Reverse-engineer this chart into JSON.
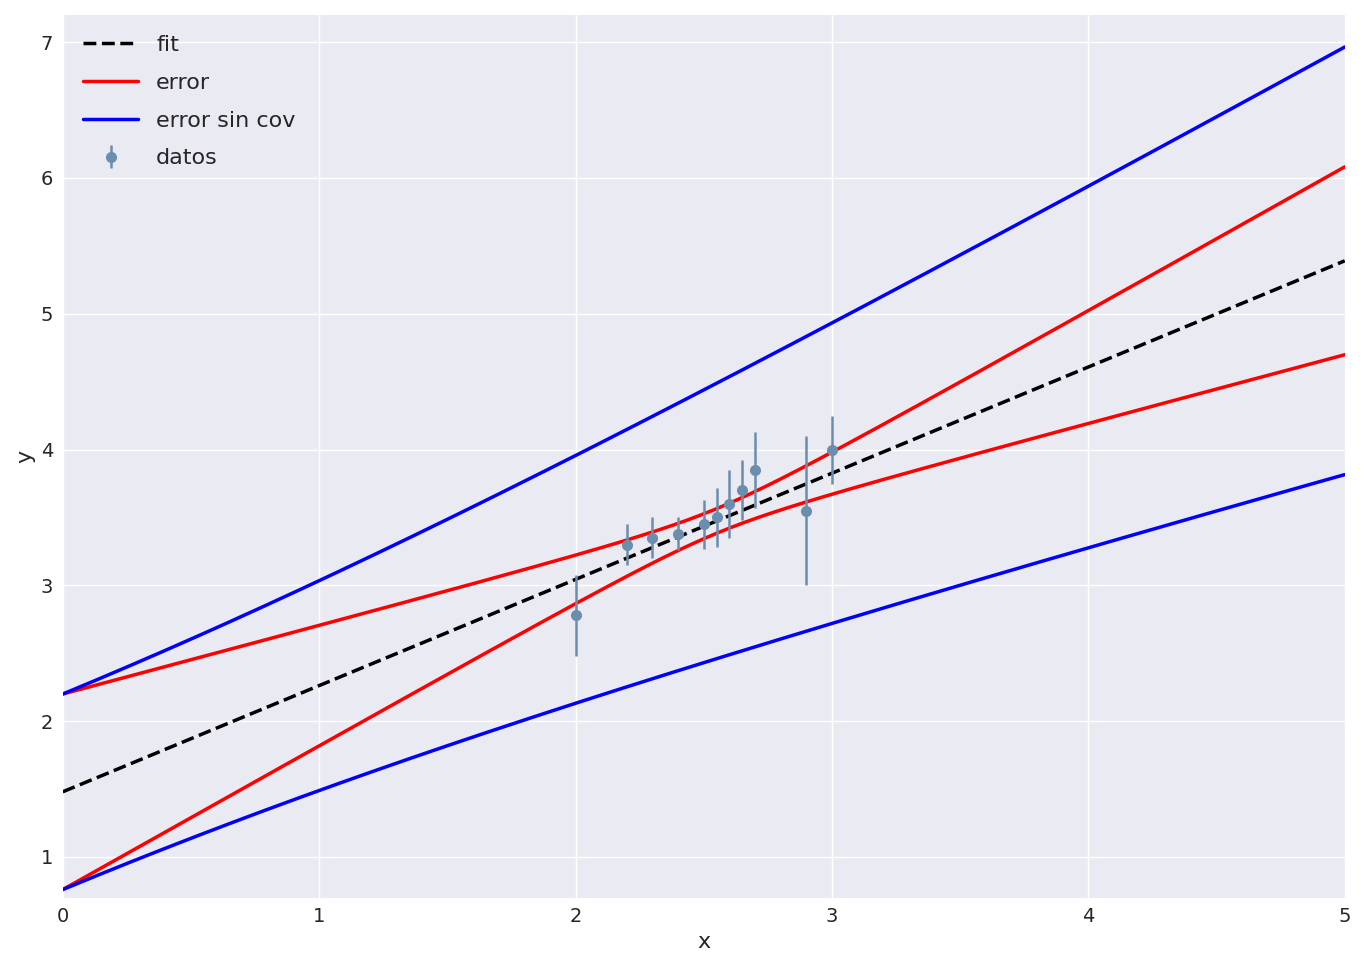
{
  "fit_a": 1.48,
  "fit_b": 0.782,
  "sigma_a": 0.72,
  "sigma_b": 0.28,
  "cov_ab": -0.2,
  "x_data": [
    2.0,
    2.2,
    2.3,
    2.4,
    2.5,
    2.55,
    2.6,
    2.65,
    2.7,
    2.9,
    3.0
  ],
  "y_data": [
    2.78,
    3.3,
    3.35,
    3.38,
    3.45,
    3.5,
    3.6,
    3.7,
    3.85,
    3.55,
    4.0
  ],
  "y_err": [
    0.3,
    0.15,
    0.15,
    0.12,
    0.18,
    0.22,
    0.25,
    0.22,
    0.28,
    0.55,
    0.25
  ],
  "xlim": [
    0,
    5
  ],
  "ylim": [
    0.7,
    7.2
  ],
  "xlabel": "x",
  "ylabel": "y",
  "legend_labels": [
    "fit",
    "error",
    "error sin cov",
    "datos"
  ],
  "fit_color": "black",
  "error_color": "red",
  "error_sin_cov_color": "blue",
  "data_color": "#6b8eae",
  "figsize": [
    13.66,
    9.67
  ],
  "dpi": 100
}
